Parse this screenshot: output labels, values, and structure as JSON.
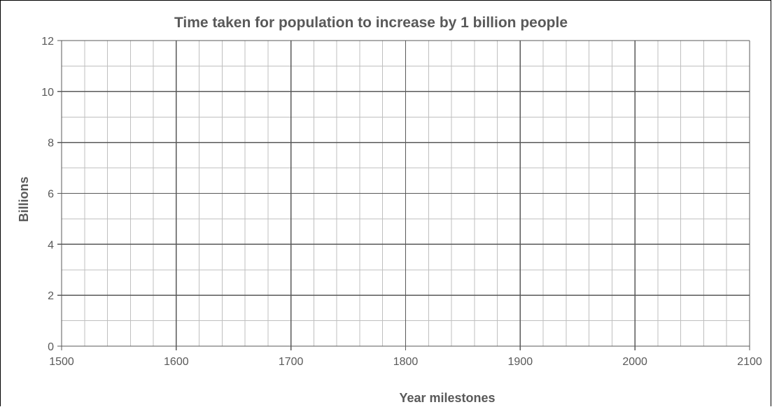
{
  "chart_data": {
    "type": "line",
    "title": "Time taken for population to increase by 1 billion people",
    "xlabel": "Year milestones",
    "ylabel": "Billions",
    "xlim": [
      1500,
      2100
    ],
    "ylim": [
      0,
      12
    ],
    "x_major_ticks": [
      1500,
      1600,
      1700,
      1800,
      1900,
      2000,
      2100
    ],
    "y_major_ticks": [
      0,
      2,
      4,
      6,
      8,
      10,
      12
    ],
    "x_tick_labels": [
      "1500",
      "1600",
      "1700",
      "1800",
      "1900",
      "2000",
      "2100"
    ],
    "y_tick_labels": [
      "0",
      "2",
      "4",
      "6",
      "8",
      "10",
      "12"
    ],
    "x_minor_step": 20,
    "y_minor_step": 1,
    "series": [],
    "grid": true,
    "legend": "none",
    "colors": {
      "major_grid": "#595959",
      "minor_grid": "#bfbfbf",
      "text": "#595959"
    }
  }
}
